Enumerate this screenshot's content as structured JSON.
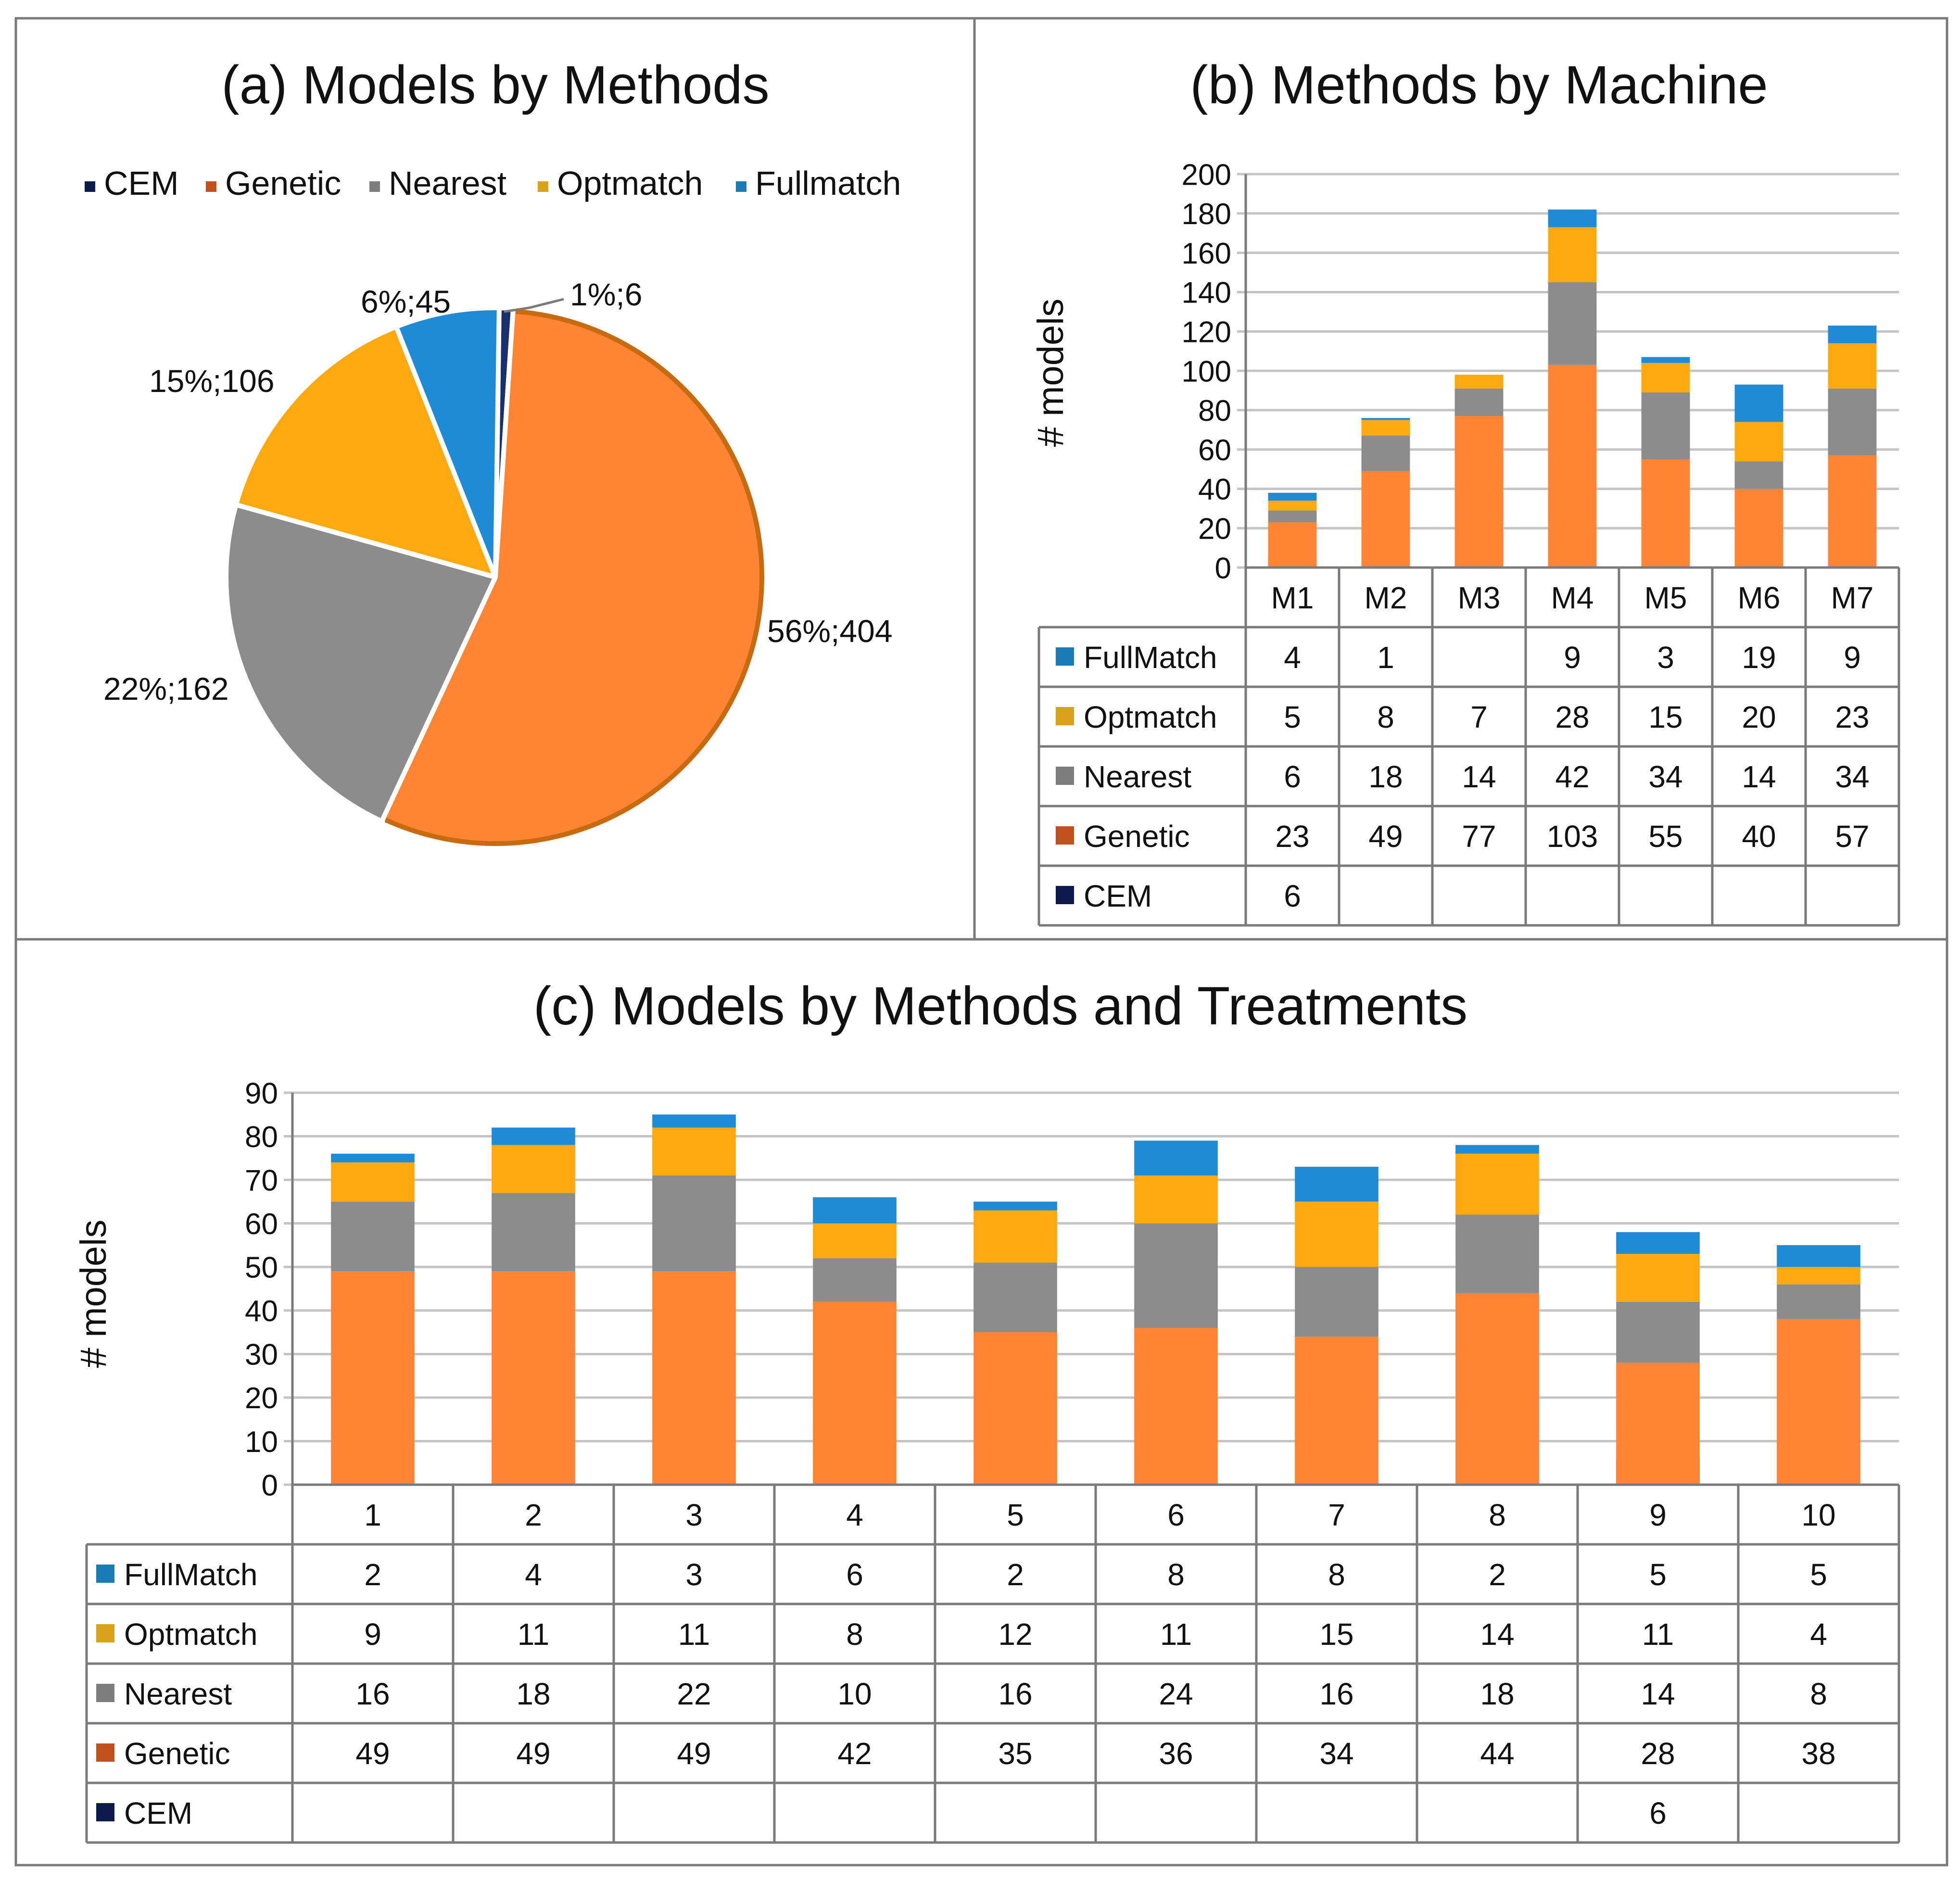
{
  "colors": {
    "CEM": "#1a2f6e",
    "Genetic": "#ff8434",
    "Nearest": "#8c8c8c",
    "Optmatch": "#fda90f",
    "FullMatch": "#1f8ad6",
    "legend_CEM": "#0d1a4c",
    "legend_Genetic": "#c0501c",
    "legend_Nearest": "#7d7d7d",
    "legend_Optmatch": "#d9a21a",
    "legend_FullMatch": "#1a7bb5",
    "grid": "#c4c4c4",
    "border": "#7a7a7a"
  },
  "chart_data": [
    {
      "type": "pie",
      "title": "(a) Models by Methods",
      "legend": [
        "CEM",
        "Genetic",
        "Nearest",
        "Optmatch",
        "Fullmatch"
      ],
      "slices": [
        {
          "name": "CEM",
          "value": 6,
          "label": "1%;6"
        },
        {
          "name": "Genetic",
          "value": 404,
          "label": "56%;404"
        },
        {
          "name": "Nearest",
          "value": 162,
          "label": "22%;162"
        },
        {
          "name": "Optmatch",
          "value": 106,
          "label": "15%;106"
        },
        {
          "name": "Fullmatch",
          "value": 45,
          "label": "6%;45"
        }
      ]
    },
    {
      "type": "bar",
      "stacked": true,
      "title": "(b) Methods by Machine",
      "ylabel": "# models",
      "ylim": [
        0,
        200
      ],
      "yticks": [
        0,
        20,
        40,
        60,
        80,
        100,
        120,
        140,
        160,
        180,
        200
      ],
      "categories": [
        "M1",
        "M2",
        "M3",
        "M4",
        "M5",
        "M6",
        "M7"
      ],
      "series": [
        {
          "name": "CEM",
          "values": [
            6,
            null,
            null,
            null,
            null,
            null,
            null
          ]
        },
        {
          "name": "Genetic",
          "values": [
            23,
            49,
            77,
            103,
            55,
            40,
            57
          ]
        },
        {
          "name": "Nearest",
          "values": [
            6,
            18,
            14,
            42,
            34,
            14,
            34
          ]
        },
        {
          "name": "Optmatch",
          "values": [
            5,
            8,
            7,
            28,
            15,
            20,
            23
          ]
        },
        {
          "name": "FullMatch",
          "values": [
            4,
            1,
            null,
            9,
            3,
            19,
            9
          ]
        }
      ],
      "table_rows": [
        "FullMatch",
        "Optmatch",
        "Nearest",
        "Genetic",
        "CEM"
      ]
    },
    {
      "type": "bar",
      "stacked": true,
      "title": "(c) Models by Methods and Treatments",
      "ylabel": "# models",
      "ylim": [
        0,
        90
      ],
      "yticks": [
        0,
        10,
        20,
        30,
        40,
        50,
        60,
        70,
        80,
        90
      ],
      "categories": [
        "1",
        "2",
        "3",
        "4",
        "5",
        "6",
        "7",
        "8",
        "9",
        "10"
      ],
      "series": [
        {
          "name": "CEM",
          "values": [
            null,
            null,
            null,
            null,
            null,
            null,
            null,
            null,
            6,
            null
          ]
        },
        {
          "name": "Genetic",
          "values": [
            49,
            49,
            49,
            42,
            35,
            36,
            34,
            44,
            28,
            38
          ]
        },
        {
          "name": "Nearest",
          "values": [
            16,
            18,
            22,
            10,
            16,
            24,
            16,
            18,
            14,
            8
          ]
        },
        {
          "name": "Optmatch",
          "values": [
            9,
            11,
            11,
            8,
            12,
            11,
            15,
            14,
            11,
            4
          ]
        },
        {
          "name": "FullMatch",
          "values": [
            2,
            4,
            3,
            6,
            2,
            8,
            8,
            2,
            5,
            5
          ]
        }
      ],
      "table_rows": [
        "FullMatch",
        "Optmatch",
        "Nearest",
        "Genetic",
        "CEM"
      ]
    }
  ]
}
